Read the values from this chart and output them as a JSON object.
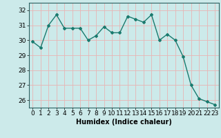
{
  "x": [
    0,
    1,
    2,
    3,
    4,
    5,
    6,
    7,
    8,
    9,
    10,
    11,
    12,
    13,
    14,
    15,
    16,
    17,
    18,
    19,
    20,
    21,
    22,
    23
  ],
  "y": [
    29.9,
    29.5,
    31.0,
    31.7,
    30.8,
    30.8,
    30.8,
    30.0,
    30.3,
    30.9,
    30.5,
    30.5,
    31.6,
    31.4,
    31.2,
    31.7,
    30.0,
    30.4,
    30.0,
    28.9,
    27.0,
    26.1,
    25.9,
    25.7
  ],
  "line_color": "#1a7a6e",
  "marker": "D",
  "marker_size": 2.0,
  "line_width": 1.0,
  "bg_color": "#cceaea",
  "grid_color": "#e8b4b4",
  "xlabel": "Humidex (Indice chaleur)",
  "xlabel_fontsize": 7,
  "tick_fontsize": 6.5,
  "ylim": [
    25.5,
    32.5
  ],
  "xlim": [
    -0.5,
    23.5
  ],
  "yticks": [
    26,
    27,
    28,
    29,
    30,
    31,
    32
  ],
  "xticks": [
    0,
    1,
    2,
    3,
    4,
    5,
    6,
    7,
    8,
    9,
    10,
    11,
    12,
    13,
    14,
    15,
    16,
    17,
    18,
    19,
    20,
    21,
    22,
    23
  ]
}
